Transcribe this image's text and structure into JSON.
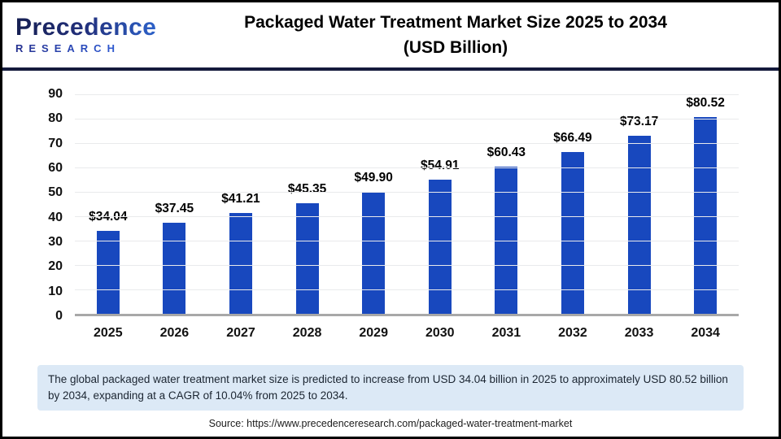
{
  "header": {
    "logo": {
      "brand": "Precedence",
      "research": "RESEARCH"
    },
    "title_line1": "Packaged Water Treatment Market Size 2025 to 2034",
    "title_line2": "(USD Billion)"
  },
  "chart_data": {
    "type": "bar",
    "title": "Packaged Water Treatment Market Size 2025 to 2034 (USD Billion)",
    "categories": [
      "2025",
      "2026",
      "2027",
      "2028",
      "2029",
      "2030",
      "2031",
      "2032",
      "2033",
      "2034"
    ],
    "values": [
      34.04,
      37.45,
      41.21,
      45.35,
      49.9,
      54.91,
      60.43,
      66.49,
      73.17,
      80.52
    ],
    "value_labels": [
      "$34.04",
      "$37.45",
      "$41.21",
      "$45.35",
      "$49.90",
      "$54.91",
      "$60.43",
      "$66.49",
      "$73.17",
      "$80.52"
    ],
    "xlabel": "",
    "ylabel": "",
    "ylim": [
      0,
      90
    ],
    "yticks": [
      0,
      10,
      20,
      30,
      40,
      50,
      60,
      70,
      80,
      90
    ],
    "grid": true,
    "legend": "none",
    "bar_color": "#1848be"
  },
  "note": {
    "text": "The global packaged water treatment market size is predicted to increase from USD 34.04 billion in 2025 to approximately USD 80.52 billion by 2034, expanding at a CAGR of 10.04% from 2025 to 2034."
  },
  "source": {
    "text": "Source: https://www.precedenceresearch.com/packaged-water-treatment-market"
  }
}
